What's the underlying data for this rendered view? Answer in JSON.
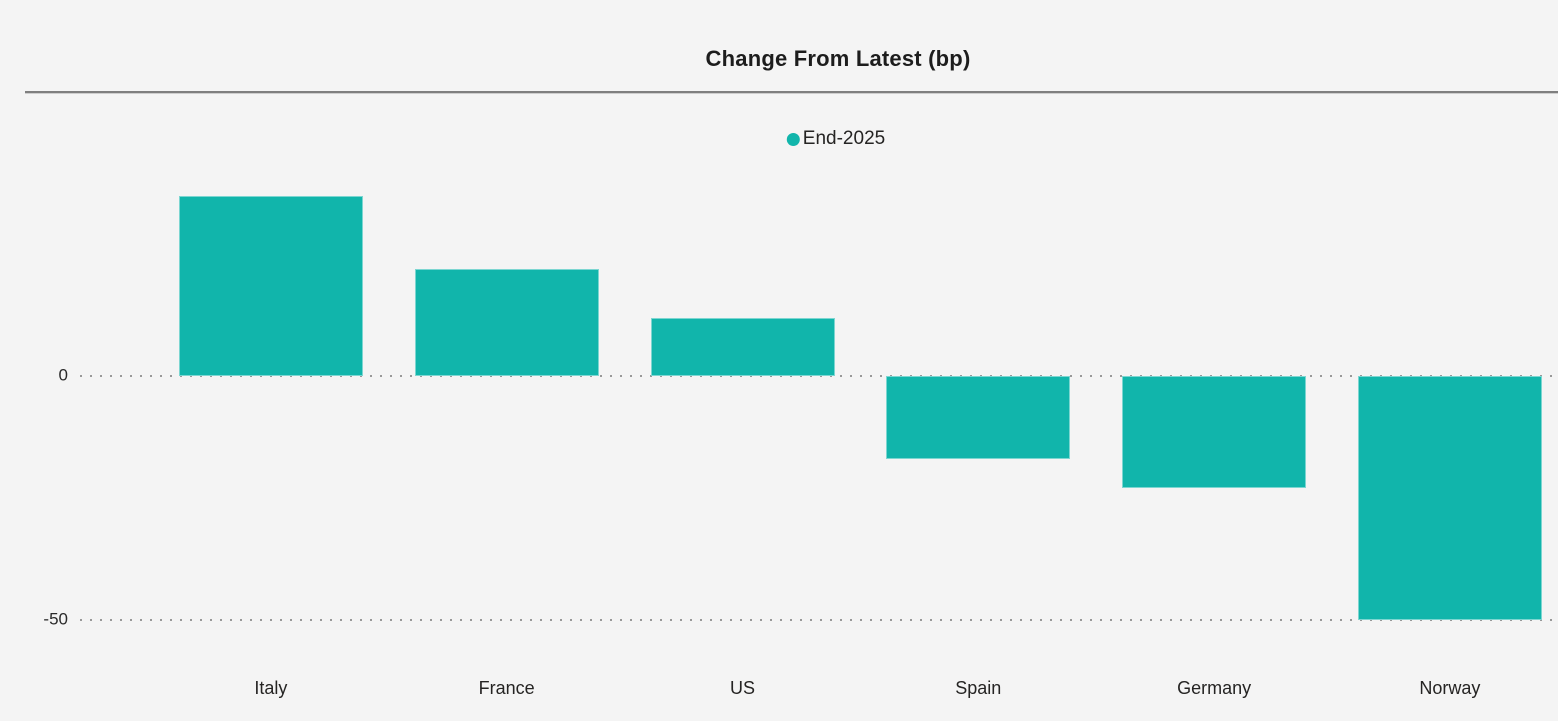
{
  "page": {
    "background": "#f4f4f4"
  },
  "header": {
    "title": "Change From Latest (bp)"
  },
  "legend": {
    "items": [
      {
        "label": "End-2025",
        "color": "#11b5ab"
      }
    ]
  },
  "y_axis": {
    "ticks": [
      {
        "label": "0",
        "value": 0
      },
      {
        "label": "-50",
        "value": -50
      }
    ]
  },
  "chart_data": {
    "type": "bar",
    "title": "Change From Latest (bp)",
    "categories": [
      "Italy",
      "France",
      "US",
      "Spain",
      "Germany",
      "Norway"
    ],
    "series": [
      {
        "name": "End-2025",
        "color": "#11b5ab",
        "values": [
          37,
          22,
          12,
          -17,
          -23,
          -50
        ]
      }
    ],
    "unit": "bp",
    "xlabel": "",
    "ylabel": "",
    "yticks": [
      0,
      -50
    ],
    "ylim": [
      -52,
      41
    ],
    "grid": "horizontal dotted lines at y-ticks",
    "legend_position": "top-center"
  }
}
